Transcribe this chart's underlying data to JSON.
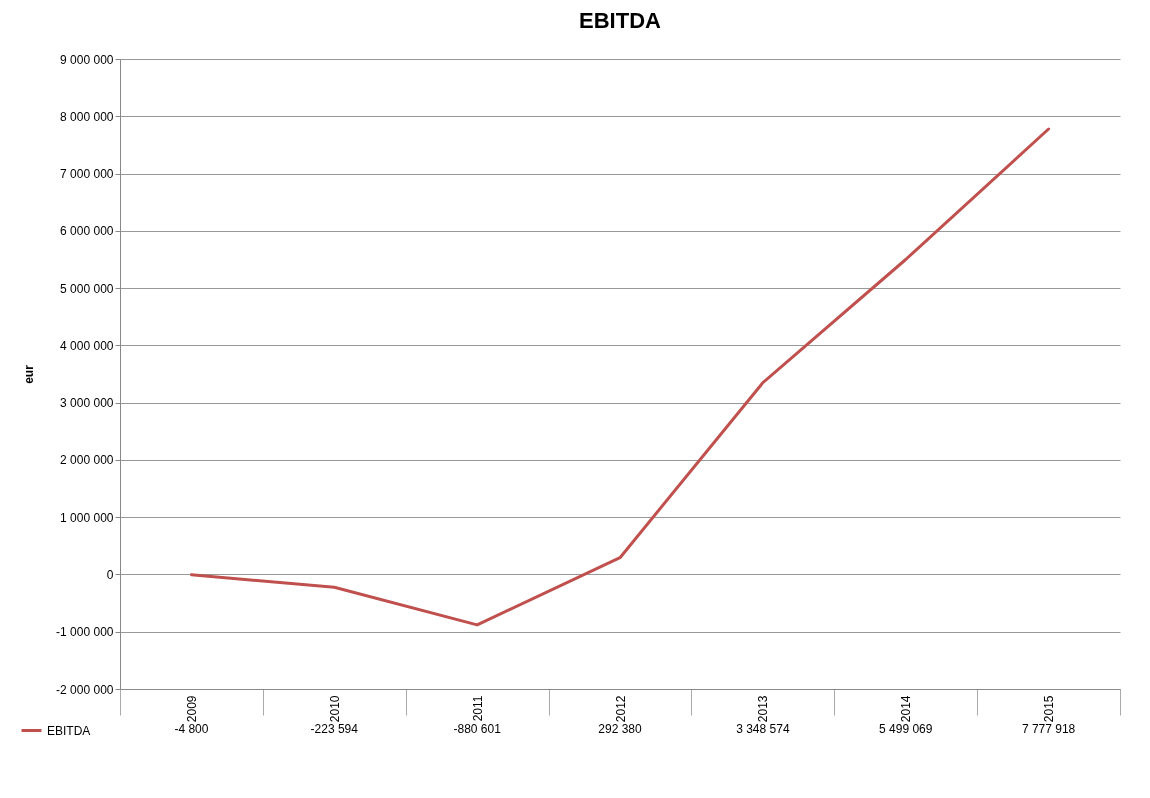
{
  "chart_data": {
    "type": "line",
    "title": "EBITDA",
    "ylabel": "eur",
    "categories": [
      "2009",
      "2010",
      "2011",
      "2012",
      "2013",
      "2014",
      "2015"
    ],
    "series": [
      {
        "name": "EBITDA",
        "color": "#c0504d",
        "values": [
          -4800,
          -223594,
          -880601,
          292380,
          3348574,
          5499069,
          7777918
        ],
        "value_labels": [
          "-4 800",
          "-223 594",
          "-880 601",
          "292 380",
          "3 348 574",
          "5 499 069",
          "7 777 918"
        ]
      }
    ],
    "ylim": [
      -2000000,
      9000000
    ],
    "yticks": [
      {
        "value": -2000000,
        "label": "-2 000 000"
      },
      {
        "value": -1000000,
        "label": "-1 000 000"
      },
      {
        "value": 0,
        "label": "0"
      },
      {
        "value": 1000000,
        "label": "1 000 000"
      },
      {
        "value": 2000000,
        "label": "2 000 000"
      },
      {
        "value": 3000000,
        "label": "3 000 000"
      },
      {
        "value": 4000000,
        "label": "4 000 000"
      },
      {
        "value": 5000000,
        "label": "5 000 000"
      },
      {
        "value": 6000000,
        "label": "6 000 000"
      },
      {
        "value": 7000000,
        "label": "7 000 000"
      },
      {
        "value": 8000000,
        "label": "8 000 000"
      },
      {
        "value": 9000000,
        "label": "9 000 000"
      }
    ],
    "grid": "y",
    "legend": "bottom left",
    "marker": "none",
    "line_style": "solid"
  }
}
